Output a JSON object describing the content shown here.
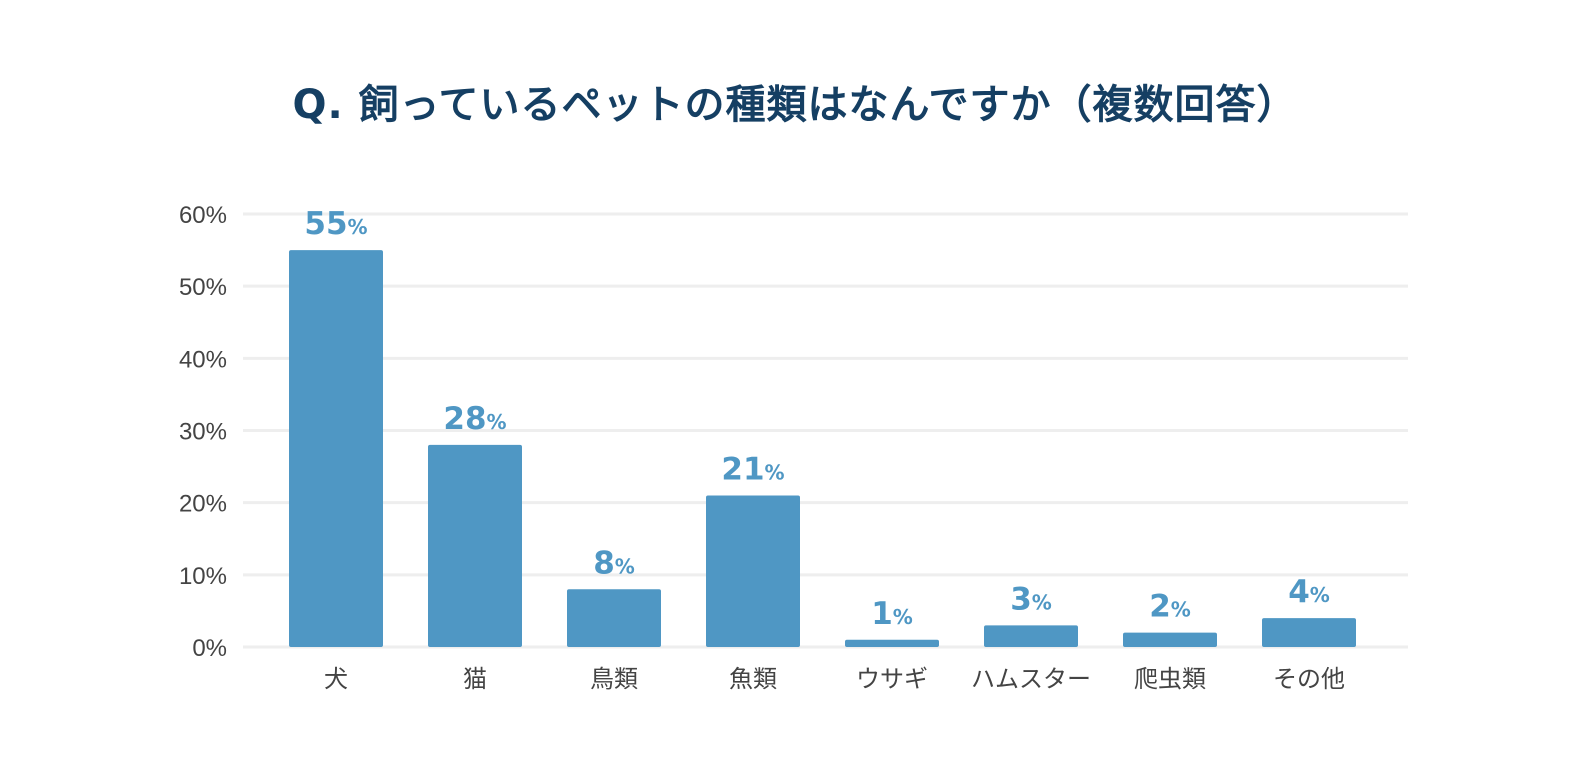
{
  "chart_data": {
    "type": "bar",
    "title": "Q. 飼っているペットの種類はなんですか（複数回答）",
    "categories": [
      "犬",
      "猫",
      "鳥類",
      "魚類",
      "ウサギ",
      "ハムスター",
      "爬虫類",
      "その他"
    ],
    "series": [
      {
        "values": [
          55,
          28,
          8,
          21,
          1,
          3,
          2,
          4
        ]
      }
    ],
    "value_unit": "%",
    "yticks": [
      "0%",
      "10%",
      "20%",
      "30%",
      "40%",
      "50%",
      "60%"
    ],
    "ylim": [
      0,
      60
    ],
    "grid": true,
    "legend": "none",
    "colors": {
      "bar": "#4f97c4",
      "value_label": "#4f97c4",
      "title": "#153f63",
      "grid": "#eeeeee"
    }
  }
}
